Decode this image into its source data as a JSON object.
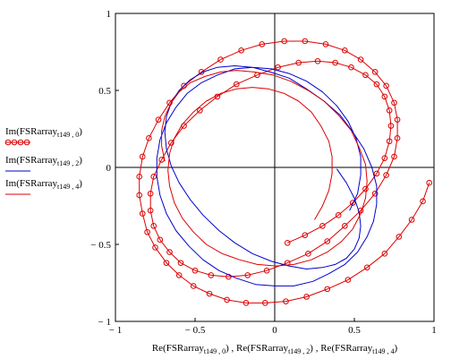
{
  "chart_data": {
    "type": "line",
    "xlim": [
      -1,
      1
    ],
    "ylim": [
      -1,
      1
    ],
    "grid": false,
    "legend_position": "left",
    "xticks": [
      {
        "value": -1,
        "label": "− 1"
      },
      {
        "value": -0.5,
        "label": "− 0.5"
      },
      {
        "value": 0,
        "label": "0"
      },
      {
        "value": 0.5,
        "label": "0.5"
      },
      {
        "value": 1,
        "label": "1"
      }
    ],
    "yticks": [
      {
        "value": 1,
        "label": "1"
      },
      {
        "value": 0.5,
        "label": "0.5"
      },
      {
        "value": 0,
        "label": "0"
      },
      {
        "value": -0.5,
        "label": "− 0.5"
      },
      {
        "value": -1,
        "label": "− 1"
      }
    ],
    "xlabel": {
      "parts": [
        {
          "base": "Re(FSRarray",
          "sub": "t149 , 0",
          "close": ")"
        },
        {
          "base": "Re(FSRarray",
          "sub": "t149 , 2",
          "close": ")"
        },
        {
          "base": "Re(FSRarray",
          "sub": "t149 , 4",
          "close": ")"
        }
      ],
      "separator": " , "
    },
    "series": [
      {
        "name": {
          "base": "Im(FSRarray",
          "sub": "t149 , 0",
          "close": ")"
        },
        "color": "#dd0000",
        "marker": "circle",
        "x": [
          0.97,
          0.93,
          0.86,
          0.78,
          0.69,
          0.58,
          0.46,
          0.33,
          0.2,
          0.07,
          -0.06,
          -0.18,
          -0.3,
          -0.41,
          -0.51,
          -0.6,
          -0.68,
          -0.75,
          -0.8,
          -0.83,
          -0.85,
          -0.85,
          -0.83,
          -0.79,
          -0.73,
          -0.66,
          -0.57,
          -0.46,
          -0.34,
          -0.21,
          -0.08,
          0.06,
          0.19,
          0.32,
          0.44,
          0.54,
          0.63,
          0.7,
          0.75,
          0.77,
          0.77,
          0.75,
          0.7,
          0.63,
          0.54,
          0.44,
          0.33,
          0.21,
          0.08,
          -0.05,
          -0.17,
          -0.29,
          -0.4,
          -0.5,
          -0.59,
          -0.66,
          -0.72,
          -0.76,
          -0.78,
          -0.78,
          -0.76,
          -0.71,
          -0.65,
          -0.57,
          -0.47,
          -0.36,
          -0.24,
          -0.11,
          0.02,
          0.15,
          0.27,
          0.38,
          0.48,
          0.57,
          0.64,
          0.69,
          0.72,
          0.73,
          0.72,
          0.69,
          0.64,
          0.57,
          0.49,
          0.4,
          0.3,
          0.19,
          0.08
        ],
        "y": [
          -0.1,
          -0.22,
          -0.34,
          -0.45,
          -0.56,
          -0.65,
          -0.73,
          -0.79,
          -0.84,
          -0.87,
          -0.88,
          -0.88,
          -0.86,
          -0.82,
          -0.77,
          -0.7,
          -0.62,
          -0.52,
          -0.42,
          -0.3,
          -0.18,
          -0.06,
          0.07,
          0.19,
          0.31,
          0.42,
          0.53,
          0.62,
          0.7,
          0.76,
          0.8,
          0.82,
          0.82,
          0.8,
          0.76,
          0.7,
          0.62,
          0.53,
          0.42,
          0.31,
          0.19,
          0.07,
          -0.05,
          -0.17,
          -0.28,
          -0.38,
          -0.48,
          -0.56,
          -0.62,
          -0.67,
          -0.7,
          -0.71,
          -0.7,
          -0.67,
          -0.62,
          -0.55,
          -0.47,
          -0.38,
          -0.28,
          -0.17,
          -0.06,
          0.05,
          0.16,
          0.27,
          0.37,
          0.46,
          0.54,
          0.6,
          0.65,
          0.68,
          0.69,
          0.68,
          0.65,
          0.6,
          0.54,
          0.46,
          0.37,
          0.27,
          0.17,
          0.06,
          -0.04,
          -0.14,
          -0.23,
          -0.31,
          -0.38,
          -0.44,
          -0.49
        ]
      },
      {
        "name": {
          "base": "Im(FSRarray",
          "sub": "t149 , 2",
          "close": ")"
        },
        "color": "#0000cc",
        "marker": "none",
        "x": [
          0.47,
          0.52,
          0.54,
          0.54,
          0.51,
          0.46,
          0.39,
          0.3,
          0.2,
          0.09,
          -0.02,
          -0.14,
          -0.25,
          -0.36,
          -0.46,
          -0.55,
          -0.62,
          -0.68,
          -0.72,
          -0.74,
          -0.74,
          -0.72,
          -0.68,
          -0.62,
          -0.54,
          -0.45,
          -0.35,
          -0.24,
          -0.12,
          0.0,
          0.12,
          0.24,
          0.34,
          0.44,
          0.52,
          0.58,
          0.62,
          0.64,
          0.64,
          0.61,
          0.56,
          0.49,
          0.41,
          0.31,
          0.2,
          0.09,
          -0.03,
          -0.14,
          -0.25,
          -0.36,
          -0.45,
          -0.53,
          -0.6,
          -0.65,
          -0.68,
          -0.69,
          -0.68,
          -0.65,
          -0.6,
          -0.53,
          -0.45,
          -0.35,
          -0.25,
          -0.14,
          -0.02,
          0.09,
          0.2,
          0.3,
          0.38,
          0.45,
          0.5,
          0.53,
          0.54,
          0.53,
          0.5,
          0.45,
          0.39
        ],
        "y": [
          -0.28,
          -0.17,
          -0.05,
          0.07,
          0.19,
          0.3,
          0.4,
          0.49,
          0.56,
          0.61,
          0.64,
          0.65,
          0.64,
          0.6,
          0.55,
          0.48,
          0.39,
          0.29,
          0.18,
          0.06,
          -0.06,
          -0.18,
          -0.3,
          -0.41,
          -0.51,
          -0.6,
          -0.67,
          -0.72,
          -0.76,
          -0.77,
          -0.77,
          -0.74,
          -0.69,
          -0.63,
          -0.55,
          -0.45,
          -0.35,
          -0.24,
          -0.12,
          0.0,
          0.12,
          0.23,
          0.34,
          0.43,
          0.51,
          0.58,
          0.62,
          0.65,
          0.66,
          0.65,
          0.62,
          0.57,
          0.5,
          0.42,
          0.33,
          0.23,
          0.12,
          0.01,
          -0.1,
          -0.21,
          -0.31,
          -0.41,
          -0.49,
          -0.56,
          -0.61,
          -0.64,
          -0.66,
          -0.65,
          -0.63,
          -0.59,
          -0.53,
          -0.46,
          -0.38,
          -0.29,
          -0.2,
          -0.1,
          -0.01
        ]
      },
      {
        "name": {
          "base": "Im(FSRarray",
          "sub": "t149 , 4",
          "close": ")"
        },
        "color": "#dd0000",
        "marker": "none",
        "x": [
          0.25,
          0.3,
          0.34,
          0.36,
          0.36,
          0.34,
          0.29,
          0.23,
          0.15,
          0.06,
          -0.04,
          -0.14,
          -0.24,
          -0.34,
          -0.43,
          -0.51,
          -0.58,
          -0.63,
          -0.66,
          -0.67,
          -0.66,
          -0.63,
          -0.58,
          -0.51,
          -0.43,
          -0.33,
          -0.22,
          -0.11,
          0.01,
          0.12,
          0.23,
          0.33,
          0.42,
          0.49,
          0.54,
          0.57,
          0.58,
          0.57,
          0.53,
          0.48,
          0.4,
          0.31,
          0.21,
          0.1,
          -0.01,
          -0.13,
          -0.24,
          -0.34,
          -0.44,
          -0.53,
          -0.6,
          -0.65,
          -0.69,
          -0.71,
          -0.71,
          -0.69
        ],
        "y": [
          -0.34,
          -0.25,
          -0.15,
          -0.04,
          0.07,
          0.17,
          0.27,
          0.36,
          0.43,
          0.48,
          0.51,
          0.52,
          0.51,
          0.48,
          0.43,
          0.36,
          0.28,
          0.19,
          0.09,
          -0.02,
          -0.12,
          -0.23,
          -0.33,
          -0.42,
          -0.5,
          -0.56,
          -0.6,
          -0.63,
          -0.64,
          -0.63,
          -0.6,
          -0.55,
          -0.48,
          -0.4,
          -0.3,
          -0.2,
          -0.09,
          0.02,
          0.13,
          0.24,
          0.34,
          0.43,
          0.5,
          0.56,
          0.6,
          0.62,
          0.63,
          0.62,
          0.59,
          0.55,
          0.49,
          0.42,
          0.33,
          0.24,
          0.14,
          0.04
        ]
      }
    ]
  }
}
